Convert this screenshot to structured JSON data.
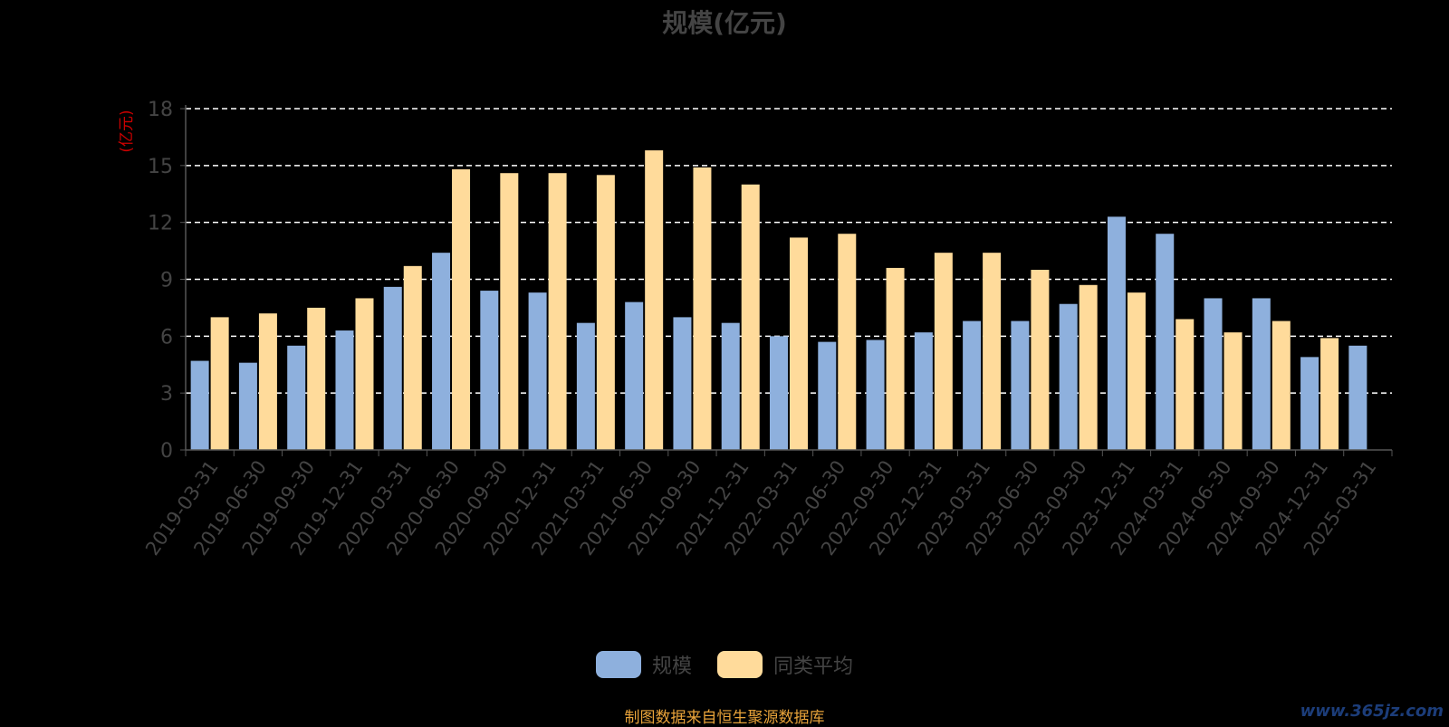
{
  "chart_data": {
    "type": "bar",
    "title": "规模(亿元)",
    "ylabel": "(亿元)",
    "xlabel": "",
    "ylim": [
      0,
      18
    ],
    "yticks": [
      0,
      3,
      6,
      9,
      12,
      15,
      18
    ],
    "grid": true,
    "legend_position": "bottom",
    "categories": [
      "2019-03-31",
      "2019-06-30",
      "2019-09-30",
      "2019-12-31",
      "2020-03-31",
      "2020-06-30",
      "2020-09-30",
      "2020-12-31",
      "2021-03-31",
      "2021-06-30",
      "2021-09-30",
      "2021-12-31",
      "2022-03-31",
      "2022-06-30",
      "2022-09-30",
      "2022-12-31",
      "2023-03-31",
      "2023-06-30",
      "2023-09-30",
      "2023-12-31",
      "2024-03-31",
      "2024-06-30",
      "2024-09-30",
      "2024-12-31",
      "2025-03-31"
    ],
    "series": [
      {
        "name": "规模",
        "color": "#8eb0dd",
        "values": [
          4.7,
          4.6,
          5.5,
          6.3,
          8.6,
          10.4,
          8.4,
          8.3,
          6.7,
          7.8,
          7.0,
          6.7,
          6.0,
          5.7,
          5.8,
          6.2,
          6.8,
          6.8,
          7.7,
          12.3,
          11.4,
          8.0,
          8.0,
          4.9,
          5.5
        ]
      },
      {
        "name": "同类平均",
        "color": "#ffdb9b",
        "values": [
          7.0,
          7.2,
          7.5,
          8.0,
          9.7,
          14.8,
          14.6,
          14.6,
          14.5,
          15.8,
          14.9,
          14.0,
          11.2,
          11.4,
          9.6,
          10.4,
          10.4,
          9.5,
          8.7,
          8.3,
          6.9,
          6.2,
          6.8,
          5.9,
          null
        ]
      }
    ]
  },
  "colors": {
    "axis_text": "#444444",
    "ylabel": "#cc0000",
    "grid": "#ffffff",
    "axis_line": "#555555",
    "source": "#e8a33a"
  },
  "footer": {
    "source": "制图数据来自恒生聚源数据库",
    "watermark": "www.365jz.com"
  }
}
